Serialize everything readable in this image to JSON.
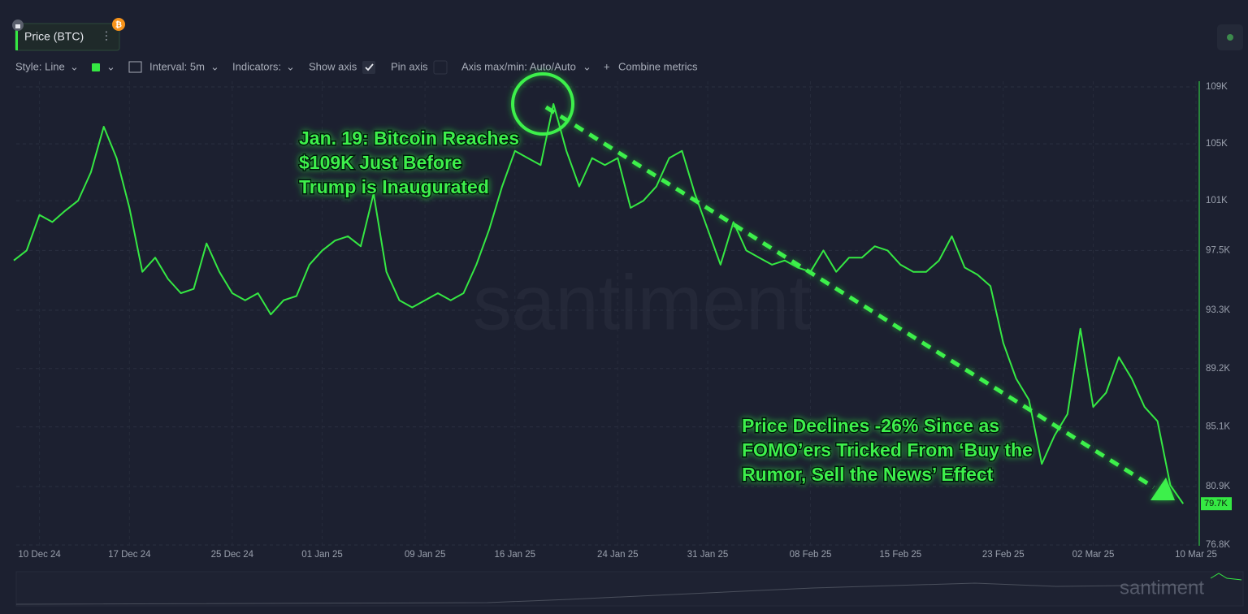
{
  "toolbar": {
    "style": "Style: Line",
    "interval": "Interval: 5m",
    "indicators": "Indicators:",
    "show_axis": "Show axis",
    "pin_axis": "Pin axis",
    "axis_minmax": "Axis max/min: Auto/Auto",
    "combine": "Combine metrics"
  },
  "watermark": "santiment",
  "chart_data": {
    "type": "line",
    "x": [
      "2024-12-08",
      "2024-12-09",
      "2024-12-10",
      "2024-12-11",
      "2024-12-12",
      "2024-12-13",
      "2024-12-14",
      "2024-12-15",
      "2024-12-16",
      "2024-12-17",
      "2024-12-18",
      "2024-12-19",
      "2024-12-20",
      "2024-12-21",
      "2024-12-22",
      "2024-12-23",
      "2024-12-24",
      "2024-12-25",
      "2024-12-26",
      "2024-12-27",
      "2024-12-28",
      "2024-12-29",
      "2024-12-30",
      "2024-12-31",
      "2025-01-01",
      "2025-01-02",
      "2025-01-03",
      "2025-01-04",
      "2025-01-05",
      "2025-01-06",
      "2025-01-07",
      "2025-01-08",
      "2025-01-09",
      "2025-01-10",
      "2025-01-11",
      "2025-01-12",
      "2025-01-13",
      "2025-01-14",
      "2025-01-15",
      "2025-01-16",
      "2025-01-17",
      "2025-01-18",
      "2025-01-19",
      "2025-01-20",
      "2025-01-21",
      "2025-01-22",
      "2025-01-23",
      "2025-01-24",
      "2025-01-25",
      "2025-01-26",
      "2025-01-27",
      "2025-01-28",
      "2025-01-29",
      "2025-01-30",
      "2025-01-31",
      "2025-02-01",
      "2025-02-02",
      "2025-02-03",
      "2025-02-04",
      "2025-02-05",
      "2025-02-06",
      "2025-02-07",
      "2025-02-08",
      "2025-02-09",
      "2025-02-10",
      "2025-02-11",
      "2025-02-12",
      "2025-02-13",
      "2025-02-14",
      "2025-02-15",
      "2025-02-16",
      "2025-02-17",
      "2025-02-18",
      "2025-02-19",
      "2025-02-20",
      "2025-02-21",
      "2025-02-22",
      "2025-02-23",
      "2025-02-24",
      "2025-02-25",
      "2025-02-26",
      "2025-02-27",
      "2025-02-28",
      "2025-03-01",
      "2025-03-02",
      "2025-03-03",
      "2025-03-04",
      "2025-03-05",
      "2025-03-06",
      "2025-03-07",
      "2025-03-08",
      "2025-03-09"
    ],
    "series": [
      {
        "name": "Price (BTC)",
        "color": "#35e843",
        "values": [
          96800,
          97500,
          100000,
          99500,
          100300,
          101000,
          103000,
          106200,
          104000,
          100500,
          96000,
          97000,
          95500,
          94500,
          94800,
          98000,
          96000,
          94500,
          94000,
          94500,
          93000,
          94000,
          94300,
          96500,
          97500,
          98200,
          98500,
          97800,
          101500,
          96000,
          94000,
          93500,
          94000,
          94500,
          94000,
          94500,
          96500,
          99000,
          102000,
          104500,
          104000,
          103500,
          107800,
          104500,
          102000,
          104000,
          103500,
          104000,
          100500,
          101000,
          102000,
          104000,
          104500,
          101500,
          99000,
          96500,
          99500,
          97500,
          97000,
          96500,
          96800,
          96300,
          96000,
          97500,
          96000,
          97000,
          97000,
          97800,
          97500,
          96500,
          96000,
          96000,
          96800,
          98500,
          96300,
          95800,
          95000,
          91000,
          88500,
          87000,
          82500,
          84500,
          86000,
          92000,
          86500,
          87500,
          90000,
          88500,
          86500,
          85500,
          81000,
          79700
        ]
      }
    ],
    "last_price": {
      "value": 79700,
      "label": "79.7K"
    },
    "xlim": [
      "2024-12-08",
      "2025-03-10"
    ],
    "xticks": [
      {
        "value": "2024-12-10",
        "label": "10 Dec 24"
      },
      {
        "value": "2024-12-17",
        "label": "17 Dec 24"
      },
      {
        "value": "2024-12-25",
        "label": "25 Dec 24"
      },
      {
        "value": "2025-01-01",
        "label": "01 Jan 25"
      },
      {
        "value": "2025-01-09",
        "label": "09 Jan 25"
      },
      {
        "value": "2025-01-16",
        "label": "16 Jan 25"
      },
      {
        "value": "2025-01-24",
        "label": "24 Jan 25"
      },
      {
        "value": "2025-01-31",
        "label": "31 Jan 25"
      },
      {
        "value": "2025-02-08",
        "label": "08 Feb 25"
      },
      {
        "value": "2025-02-15",
        "label": "15 Feb 25"
      },
      {
        "value": "2025-02-23",
        "label": "23 Feb 25"
      },
      {
        "value": "2025-03-02",
        "label": "02 Mar 25"
      },
      {
        "value": "2025-03-10",
        "label": "10 Mar 25"
      }
    ],
    "ylim": [
      76400,
      109400
    ],
    "yticks": [
      {
        "value": 76800,
        "label": "76.8K"
      },
      {
        "value": 80900,
        "label": "80.9K"
      },
      {
        "value": 85100,
        "label": "85.1K"
      },
      {
        "value": 89200,
        "label": "89.2K"
      },
      {
        "value": 93300,
        "label": "93.3K"
      },
      {
        "value": 97500,
        "label": "97.5K"
      },
      {
        "value": 101000,
        "label": "101K"
      },
      {
        "value": 105000,
        "label": "105K"
      },
      {
        "value": 109000,
        "label": "109K"
      }
    ],
    "grid": true,
    "annotations": [
      {
        "lines": [
          "Jan. 19: Bitcoin Reaches",
          "$109K Just Before",
          "Trump is Inaugurated"
        ]
      },
      {
        "lines": [
          "Price Declines -26% Since as",
          "FOMO’ers Tricked From ‘Buy the",
          "Rumor, Sell the News’ Effect"
        ]
      }
    ]
  }
}
